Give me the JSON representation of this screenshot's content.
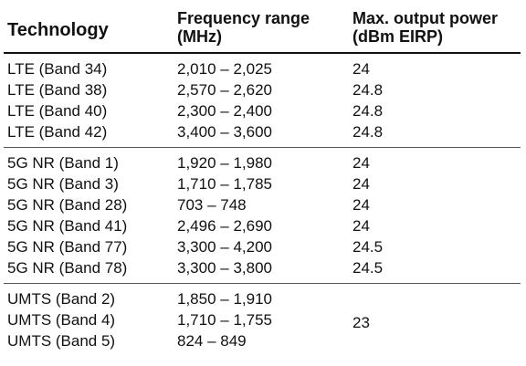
{
  "table": {
    "headers": {
      "technology": "Technology",
      "frequency_line1": "Frequency range",
      "frequency_line2": "(MHz)",
      "power_line1": "Max. output power",
      "power_line2": "(dBm EIRP)"
    },
    "groups": [
      {
        "rows": [
          {
            "technology": "LTE (Band 34)",
            "frequency": "2,010 – 2,025",
            "power": "24"
          },
          {
            "technology": "LTE (Band 38)",
            "frequency": "2,570 – 2,620",
            "power": "24.8"
          },
          {
            "technology": "LTE (Band 40)",
            "frequency": "2,300 – 2,400",
            "power": "24.8"
          },
          {
            "technology": "LTE (Band 42)",
            "frequency": "3,400 – 3,600",
            "power": "24.8"
          }
        ]
      },
      {
        "rows": [
          {
            "technology": "5G NR (Band 1)",
            "frequency": "1,920 – 1,980",
            "power": "24"
          },
          {
            "technology": "5G NR (Band 3)",
            "frequency": "1,710 – 1,785",
            "power": "24"
          },
          {
            "technology": "5G NR (Band 28)",
            "frequency": "703 – 748",
            "power": "24"
          },
          {
            "technology": "5G NR (Band 41)",
            "frequency": "2,496 – 2,690",
            "power": "24"
          },
          {
            "technology": "5G NR (Band 77)",
            "frequency": "3,300 – 4,200",
            "power": "24.5"
          },
          {
            "technology": "5G NR (Band 78)",
            "frequency": "3,300 – 3,800",
            "power": "24.5"
          }
        ]
      },
      {
        "shared_power": "23",
        "rows": [
          {
            "technology": "UMTS (Band 2)",
            "frequency": "1,850 – 1,910"
          },
          {
            "technology": "UMTS (Band 4)",
            "frequency": "1,710 – 1,755"
          },
          {
            "technology": "UMTS (Band 5)",
            "frequency": "824 – 849"
          }
        ]
      }
    ]
  }
}
